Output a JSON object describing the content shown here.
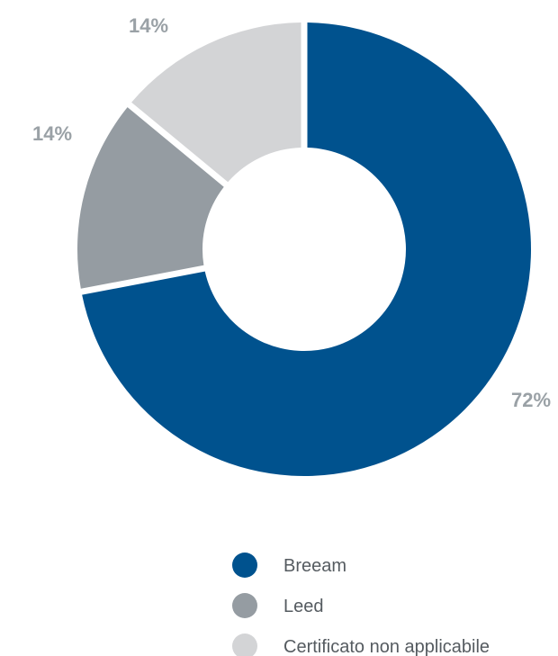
{
  "chart_data": {
    "type": "pie",
    "variant": "donut",
    "title": "",
    "categories": [
      "Breeam",
      "Leed",
      "Certificato non applicabile"
    ],
    "values": [
      72,
      14,
      14
    ],
    "unit": "%",
    "data_labels": [
      "72%",
      "14%",
      "14%"
    ],
    "colors": [
      "#00528e",
      "#959ca2",
      "#d3d4d6"
    ],
    "legend": {
      "position": "bottom",
      "entries": [
        "Breeam",
        "Leed",
        "Certificato non applicabile"
      ]
    }
  }
}
